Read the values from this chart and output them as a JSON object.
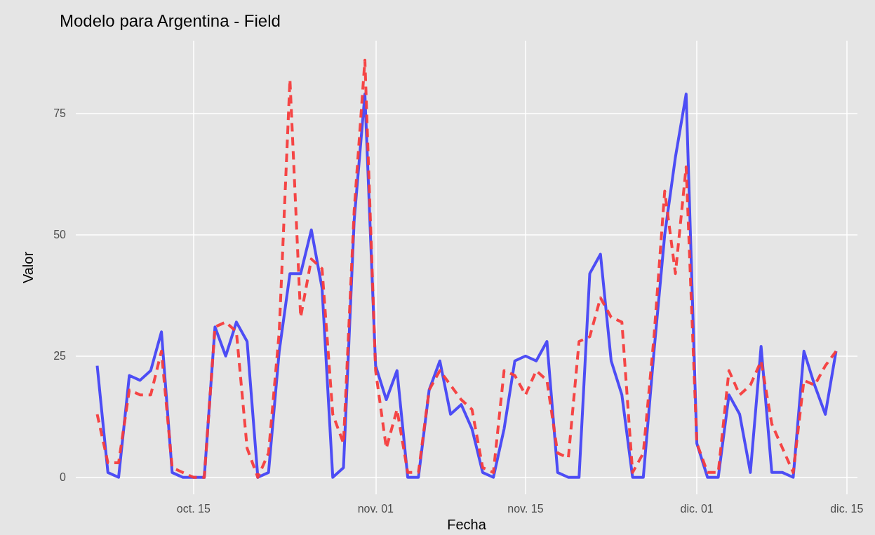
{
  "chart_data": {
    "type": "line",
    "title": "Modelo para Argentina - Field",
    "xlabel": "Fecha",
    "ylabel": "Valor",
    "x": [
      "--10-06",
      "--10-07",
      "--10-08",
      "--10-09",
      "--10-10",
      "--10-11",
      "--10-12",
      "--10-13",
      "--10-14",
      "--10-15",
      "--10-16",
      "--10-17",
      "--10-18",
      "--10-19",
      "--10-20",
      "--10-21",
      "--10-22",
      "--10-23",
      "--10-24",
      "--10-25",
      "--10-26",
      "--10-27",
      "--10-28",
      "--10-29",
      "--10-30",
      "--10-31",
      "--11-01",
      "--11-02",
      "--11-03",
      "--11-04",
      "--11-05",
      "--11-06",
      "--11-07",
      "--11-08",
      "--11-09",
      "--11-10",
      "--11-11",
      "--11-12",
      "--11-13",
      "--11-14",
      "--11-15",
      "--11-16",
      "--11-17",
      "--11-18",
      "--11-19",
      "--11-20",
      "--11-21",
      "--11-22",
      "--11-23",
      "--11-24",
      "--11-25",
      "--11-26",
      "--11-27",
      "--11-28",
      "--11-29",
      "--11-30",
      "--12-01",
      "--12-02",
      "--12-03",
      "--12-04",
      "--12-05",
      "--12-06",
      "--12-07",
      "--12-08",
      "--12-09",
      "--12-10",
      "--12-11",
      "--12-12",
      "--12-13",
      "--12-14"
    ],
    "series": [
      {
        "color": "#4444f5",
        "line_style": "solid",
        "values": [
          23,
          1,
          0,
          21,
          20,
          22,
          30,
          1,
          0,
          0,
          0,
          31,
          25,
          32,
          28,
          0,
          1,
          26,
          42,
          42,
          51,
          39,
          0,
          2,
          53,
          79,
          23,
          16,
          22,
          0,
          0,
          18,
          24,
          13,
          15,
          10,
          1,
          0,
          10,
          24,
          25,
          24,
          28,
          1,
          0,
          0,
          42,
          46,
          24,
          17,
          0,
          0,
          26,
          50,
          66,
          79,
          7,
          0,
          0,
          17,
          13,
          1,
          27,
          1,
          1,
          0,
          26,
          19,
          13,
          26
        ]
      },
      {
        "color": "#f53c3c",
        "line_style": "dashed",
        "values": [
          13,
          3,
          3,
          18,
          17,
          17,
          26,
          2,
          1,
          0,
          0,
          31,
          32,
          30,
          6,
          0,
          5,
          30,
          82,
          33,
          45,
          43,
          13,
          7,
          55,
          86,
          22,
          6,
          14,
          1,
          1,
          18,
          22,
          19,
          16,
          14,
          2,
          1,
          22,
          21,
          17,
          22,
          20,
          5,
          4,
          28,
          29,
          37,
          33,
          32,
          1,
          5,
          29,
          59,
          42,
          64,
          7,
          1,
          1,
          22,
          17,
          19,
          24,
          11,
          6,
          1,
          20,
          19,
          23,
          26
        ]
      }
    ],
    "xlim": [
      "--10-04",
      "--12-16"
    ],
    "xticks": [
      {
        "value": "--10-15",
        "label": "oct. 15"
      },
      {
        "value": "--11-01",
        "label": "nov. 01"
      },
      {
        "value": "--11-15",
        "label": "nov. 15"
      },
      {
        "value": "--12-01",
        "label": "dic. 01"
      },
      {
        "value": "--12-15",
        "label": "dic. 15"
      }
    ],
    "ylim": [
      -3.5,
      90
    ],
    "yticks": [
      0,
      25,
      50,
      75
    ],
    "grid": true,
    "marker": "none"
  }
}
